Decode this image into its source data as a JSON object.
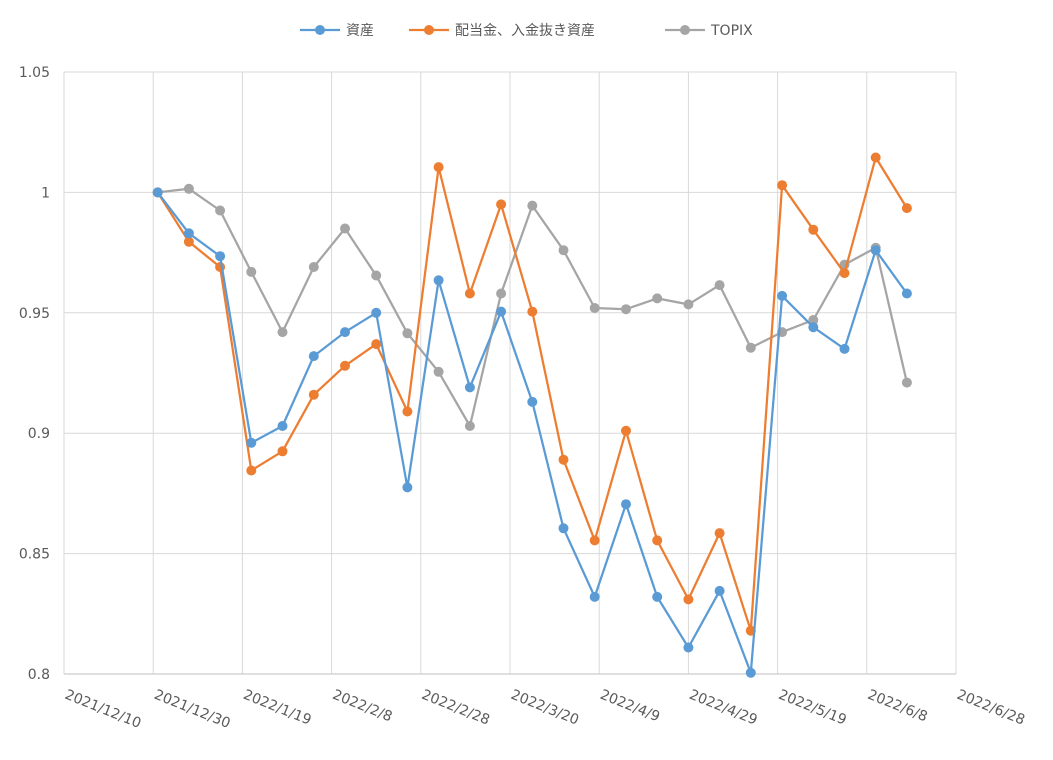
{
  "chart_data": {
    "type": "line",
    "title": "",
    "xlabel": "",
    "ylabel": "",
    "ylim": [
      0.8,
      1.05
    ],
    "yticks": [
      "0.8",
      "0.85",
      "0.9",
      "0.95",
      "1",
      "1.05"
    ],
    "xticks": [
      "2021/12/10",
      "2021/12/30",
      "2022/1/19",
      "2022/2/8",
      "2022/2/28",
      "2022/3/20",
      "2022/4/9",
      "2022/4/29",
      "2022/5/19",
      "2022/6/8",
      "2022/6/28"
    ],
    "grid": true,
    "legend_position": "top",
    "x": [
      "2021/12/31",
      "2022/1/7",
      "2022/1/14",
      "2022/1/21",
      "2022/1/28",
      "2022/2/4",
      "2022/2/11",
      "2022/2/18",
      "2022/2/25",
      "2022/3/4",
      "2022/3/11",
      "2022/3/18",
      "2022/3/25",
      "2022/4/1",
      "2022/4/8",
      "2022/4/15",
      "2022/4/22",
      "2022/4/29",
      "2022/5/6",
      "2022/5/13",
      "2022/5/20",
      "2022/5/27",
      "2022/6/3",
      "2022/6/10",
      "2022/6/17"
    ],
    "series": [
      {
        "name": "資産",
        "color": "#5b9bd5",
        "values": [
          1.0,
          0.983,
          0.9735,
          0.896,
          0.903,
          0.932,
          0.942,
          0.95,
          0.8775,
          0.9635,
          0.919,
          0.9505,
          0.913,
          0.8605,
          0.832,
          0.8705,
          0.832,
          0.811,
          0.8345,
          0.8005,
          0.957,
          0.944,
          0.935,
          0.976,
          0.958
        ]
      },
      {
        "name": "配当金、入金抜き資産",
        "color": "#ed7d31",
        "values": [
          1.0,
          0.9795,
          0.969,
          0.8845,
          0.8925,
          0.916,
          0.928,
          0.937,
          0.909,
          1.0105,
          0.958,
          0.995,
          0.9505,
          0.889,
          0.8555,
          0.901,
          0.8555,
          0.831,
          0.8585,
          0.818,
          1.003,
          0.9845,
          0.9665,
          1.0145,
          0.9935
        ]
      },
      {
        "name": "TOPIX",
        "color": "#a5a5a5",
        "values": [
          1.0,
          1.0015,
          0.9925,
          0.967,
          0.942,
          0.969,
          0.985,
          0.9655,
          0.9415,
          0.9255,
          0.903,
          0.958,
          0.9945,
          0.976,
          0.952,
          0.9515,
          0.956,
          0.9535,
          0.9615,
          0.9355,
          0.942,
          0.947,
          0.97,
          0.977,
          0.921
        ]
      }
    ]
  }
}
